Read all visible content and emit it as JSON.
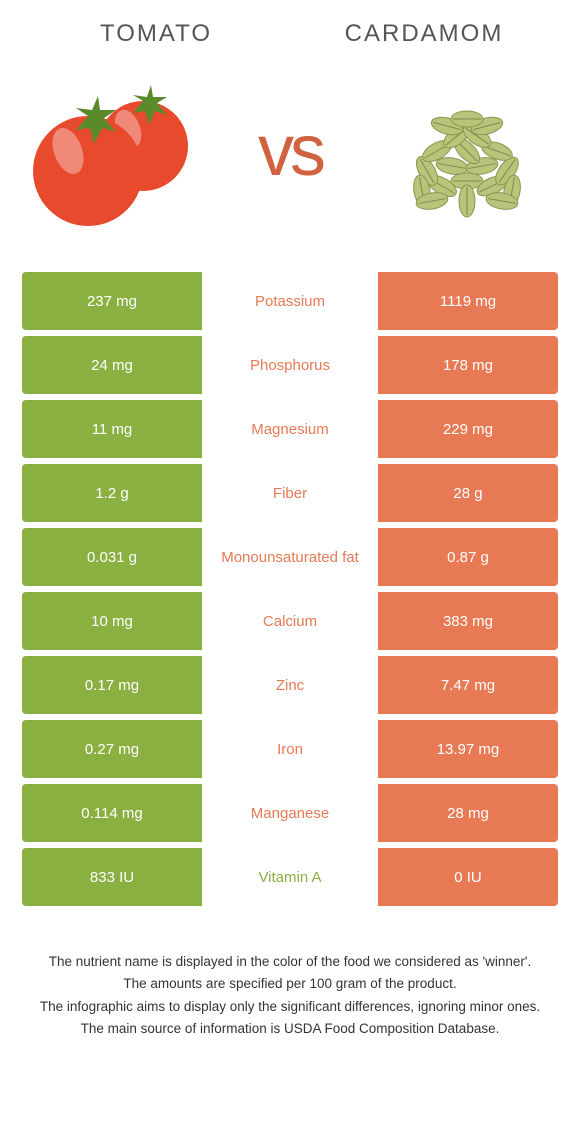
{
  "left_food": {
    "name": "Tomato",
    "color": "#8ab042"
  },
  "right_food": {
    "name": "Cardamom",
    "color": "#e77a54"
  },
  "vs_text": "vs",
  "vs_color": "#d0623f",
  "rows": [
    {
      "nutrient": "Potassium",
      "left": "237 mg",
      "right": "1119 mg",
      "winner": "right"
    },
    {
      "nutrient": "Phosphorus",
      "left": "24 mg",
      "right": "178 mg",
      "winner": "right"
    },
    {
      "nutrient": "Magnesium",
      "left": "11 mg",
      "right": "229 mg",
      "winner": "right"
    },
    {
      "nutrient": "Fiber",
      "left": "1.2 g",
      "right": "28 g",
      "winner": "right"
    },
    {
      "nutrient": "Monounsaturated fat",
      "left": "0.031 g",
      "right": "0.87 g",
      "winner": "right"
    },
    {
      "nutrient": "Calcium",
      "left": "10 mg",
      "right": "383 mg",
      "winner": "right"
    },
    {
      "nutrient": "Zinc",
      "left": "0.17 mg",
      "right": "7.47 mg",
      "winner": "right"
    },
    {
      "nutrient": "Iron",
      "left": "0.27 mg",
      "right": "13.97 mg",
      "winner": "right"
    },
    {
      "nutrient": "Manganese",
      "left": "0.114 mg",
      "right": "28 mg",
      "winner": "right"
    },
    {
      "nutrient": "Vitamin A",
      "left": "833 IU",
      "right": "0 IU",
      "winner": "left"
    }
  ],
  "footnotes": [
    "The nutrient name is displayed in the color of the food we considered as 'winner'.",
    "The amounts are specified per 100 gram of the product.",
    "The infographic aims to display only the significant differences, ignoring minor ones.",
    "The main source of information is USDA Food Composition Database."
  ]
}
